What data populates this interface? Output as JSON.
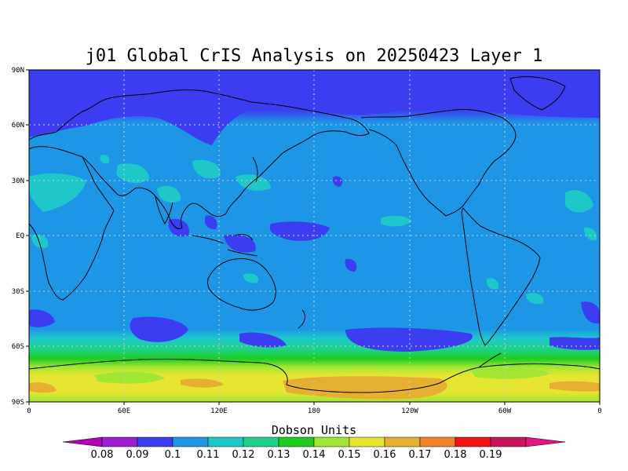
{
  "title": "j01 Global CrIS Analysis on 20250423 Layer 1",
  "colorbar": {
    "label": "Dobson Units",
    "ticks": [
      "0.08",
      "0.09",
      "0.1",
      "0.11",
      "0.12",
      "0.13",
      "0.14",
      "0.15",
      "0.16",
      "0.17",
      "0.18",
      "0.19"
    ],
    "colors": [
      "#9b1fd0",
      "#3c3cf0",
      "#1e96e6",
      "#1ec8c8",
      "#1ed28c",
      "#1ecd1e",
      "#a0e632",
      "#e6e632",
      "#e6af32",
      "#f08228",
      "#f01414",
      "#c8145a"
    ],
    "under_color": "#b400b4",
    "over_color": "#e61482"
  },
  "axes": {
    "y_ticks": [
      "90N",
      "60N",
      "30N",
      "EQ",
      "30S",
      "60S",
      "90S"
    ],
    "x_ticks": [
      "0",
      "60E",
      "120E",
      "180",
      "120W",
      "60W",
      "0"
    ]
  },
  "colors": {
    "land_outline": "#000000",
    "gridline": "#cfcfcf",
    "frame": "#000000"
  }
}
